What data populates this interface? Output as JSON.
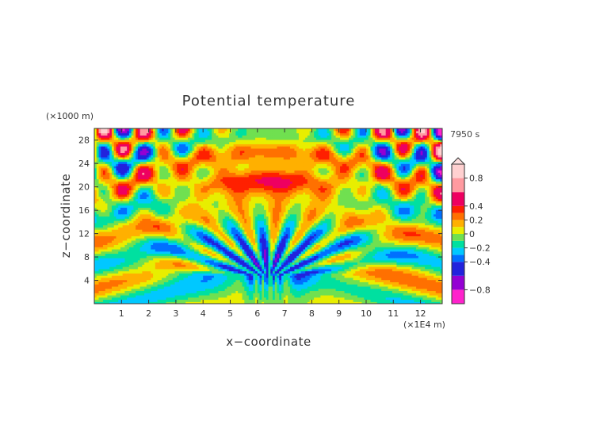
{
  "chart_data": {
    "type": "heatmap",
    "title": "Potential temperature",
    "time_label": "7950 s",
    "xlabel": "x−coordinate",
    "ylabel": "z−coordinate",
    "x_unit": "(×1E4 m)",
    "y_unit": "(×1000 m)",
    "xlim": [
      0,
      12.8
    ],
    "ylim": [
      0,
      30
    ],
    "x_ticks": [
      "1",
      "2",
      "3",
      "4",
      "5",
      "6",
      "7",
      "8",
      "9",
      "10",
      "11",
      "12"
    ],
    "y_ticks": [
      "4",
      "8",
      "12",
      "16",
      "20",
      "24",
      "28"
    ],
    "colorbar": {
      "range": [
        -1.0,
        1.0
      ],
      "tick_labels": [
        "0.8",
        "0.4",
        "0.2",
        "0",
        "−0.2",
        "−0.4",
        "−0.8"
      ],
      "tick_values": [
        0.8,
        0.4,
        0.2,
        0,
        -0.2,
        -0.4,
        -0.8
      ],
      "colors": [
        "#ff22cc",
        "#9400d3",
        "#2222dd",
        "#0070ff",
        "#00c8ff",
        "#00e0a0",
        "#70e050",
        "#e8ee00",
        "#ffb000",
        "#ff7000",
        "#ff2000",
        "#ee0060",
        "#ff9aa0",
        "#ffd0d0"
      ],
      "levels": [
        -1.0,
        -0.8,
        -0.6,
        -0.4,
        -0.3,
        -0.2,
        -0.1,
        0,
        0.1,
        0.2,
        0.3,
        0.4,
        0.6,
        0.8,
        1.0
      ],
      "extend_top": true
    },
    "description_field": "wave interference pattern: strong alternating cells in upper corners, smooth warm dome near centre top, stratified negative bands in lower half"
  }
}
